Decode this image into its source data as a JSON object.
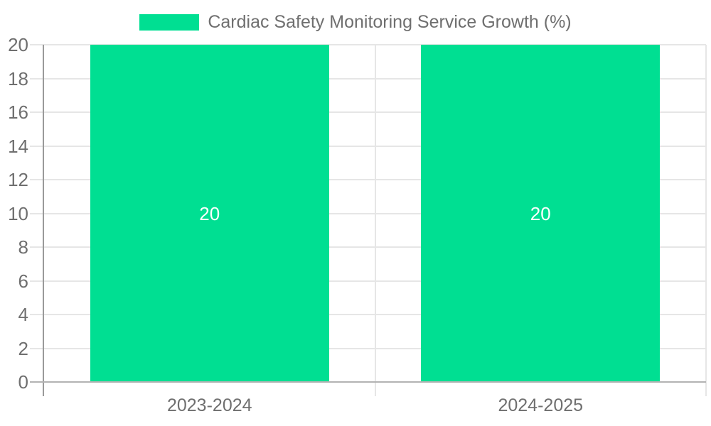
{
  "chart_data": {
    "type": "bar",
    "title": "Cardiac Safety Monitoring Service Growth (%)",
    "categories": [
      "2023-2024",
      "2024-2025"
    ],
    "series": [
      {
        "name": "Cardiac Safety Monitoring Service Growth (%)",
        "values": [
          20,
          20
        ]
      }
    ],
    "bar_value_labels": [
      "20",
      "20"
    ],
    "ylim": [
      0,
      20
    ],
    "yticks": [
      0,
      2,
      4,
      6,
      8,
      10,
      12,
      14,
      16,
      18,
      20
    ],
    "grid": true,
    "legend_position": "top-center",
    "bar_width_fraction": 0.722,
    "colors": {
      "bar": "#00df92",
      "gridline": "#e6e6e6",
      "zero_line": "#b3b3b3",
      "axis_line": "#9a9a9a",
      "label_text": "#6f6f6f",
      "bar_label_text": "#ffffff",
      "background": "#ffffff"
    }
  }
}
